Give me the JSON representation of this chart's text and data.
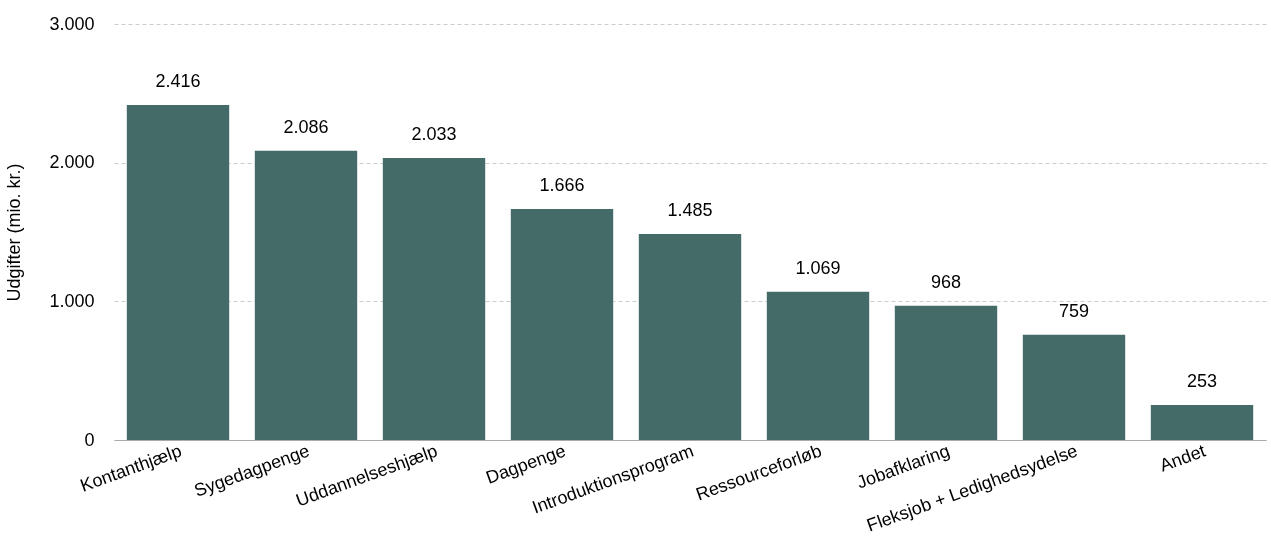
{
  "chart_data": {
    "type": "bar",
    "ylabel": "Udgifter (mio. kr.)",
    "categories": [
      "Kontanthjælp",
      "Sygedagpenge",
      "Uddannelseshjælp",
      "Dagpenge",
      "Introduktionsprogram",
      "Ressourceforløb",
      "Jobafklaring",
      "Fleksjob + Ledighedsydelse",
      "Andet"
    ],
    "values": [
      2416,
      2086,
      2033,
      1666,
      1485,
      1069,
      968,
      759,
      253
    ],
    "value_labels": [
      "2.416",
      "2.086",
      "2.033",
      "1.666",
      "1.485",
      "1.069",
      "968",
      "759",
      "253"
    ],
    "color": "#456b68",
    "ylim": [
      0,
      3000
    ],
    "yticks": [
      0,
      {
        "value": 1000,
        "label": "1.000"
      },
      {
        "value": 2000,
        "label": "2.000"
      },
      {
        "value": 3000,
        "label": "3.000"
      }
    ],
    "grid": "y"
  }
}
